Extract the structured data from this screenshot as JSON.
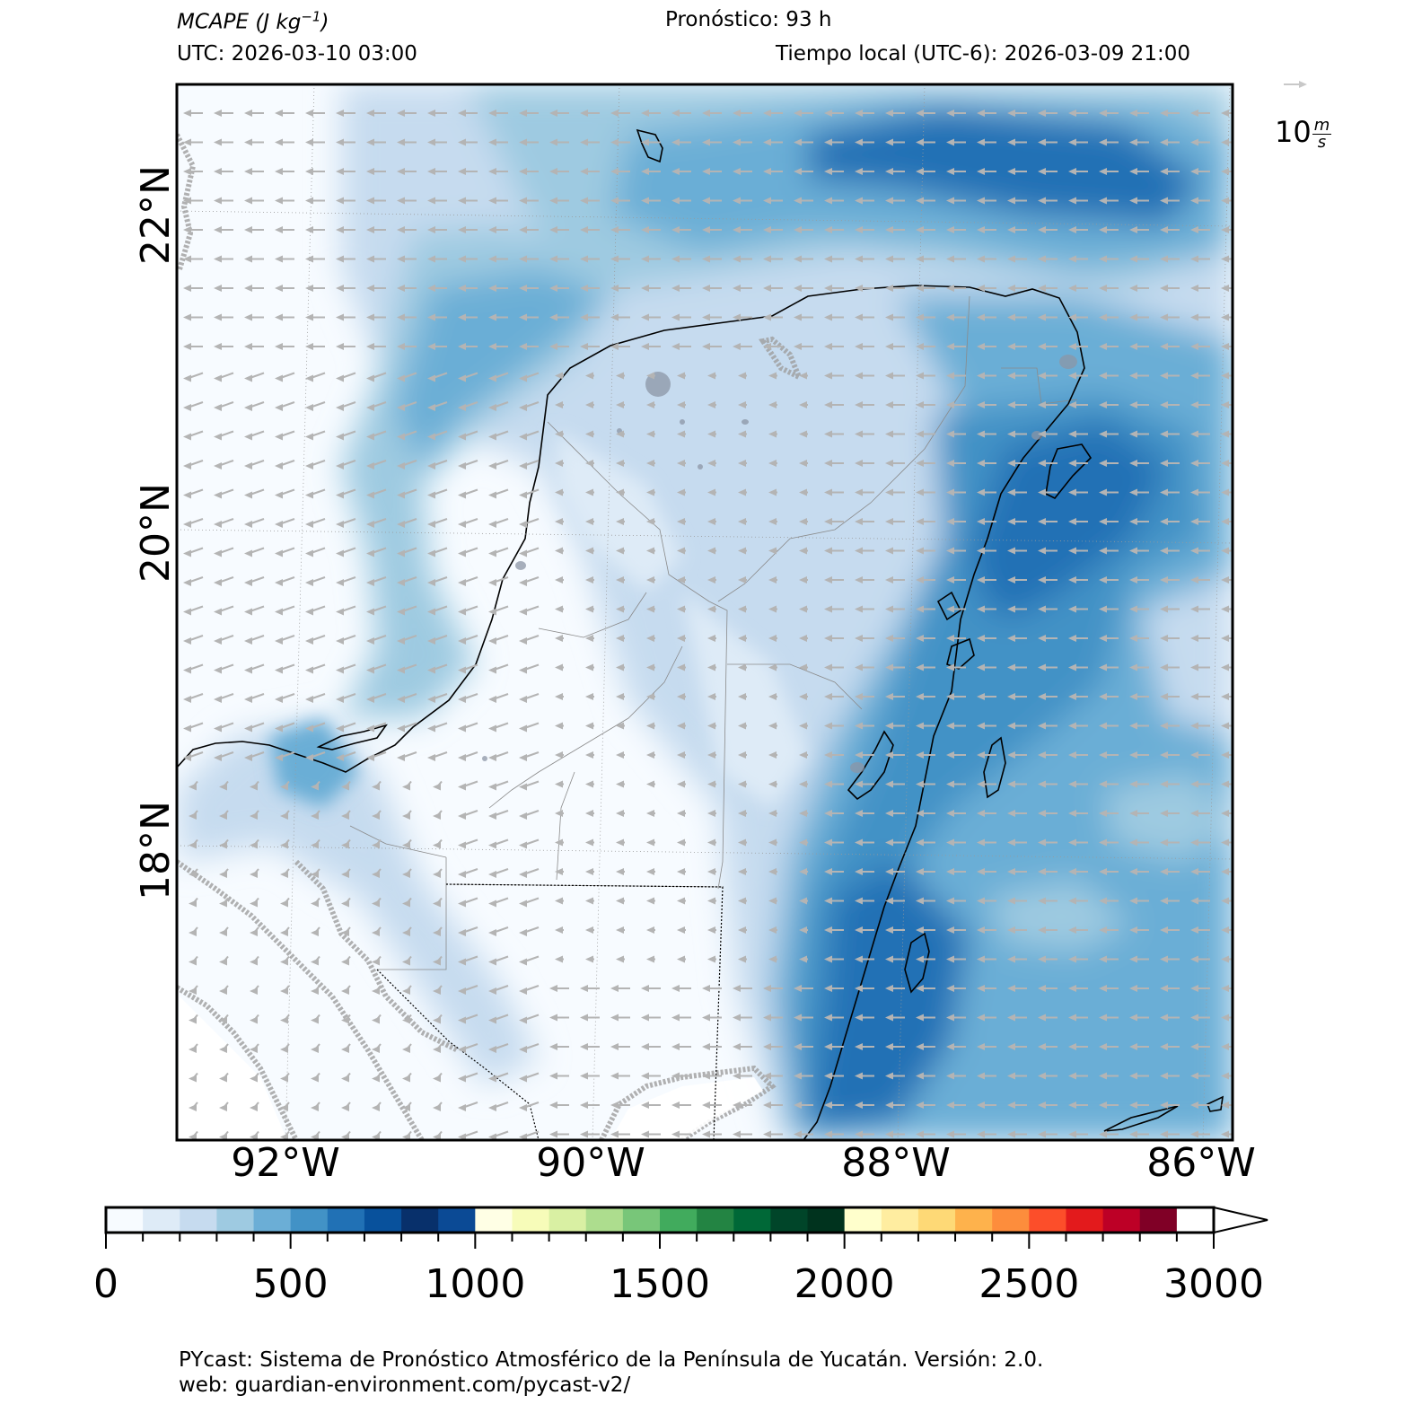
{
  "header": {
    "variable_name": "MCAPE",
    "variable_units": "(J kg",
    "variable_units_exp": "−1",
    "variable_units_close": ")",
    "forecast": "Pronóstico: 93 h",
    "utc": "UTC:  2026-03-10 03:00",
    "local": "Tiempo local (UTC-6): 2026-03-09 21:00"
  },
  "map": {
    "lat_labels": [
      "22°N",
      "20°N",
      "18°N"
    ],
    "lon_labels": [
      "92°W",
      "90°W",
      "88°W",
      "86°W"
    ],
    "wind_reference": {
      "value": "10",
      "unit_num": "m",
      "unit_den": "s"
    },
    "wind_direction": "from east, pointing west",
    "colors": {
      "land_border": "#000000",
      "wind_arrows": "#b4b4b4",
      "max_shade": "#08519c"
    }
  },
  "colorbar": {
    "min": 0,
    "max": 3000,
    "step": 100,
    "extend": "max",
    "tick_labels": [
      "0",
      "500",
      "1000",
      "1500",
      "2000",
      "2500",
      "3000"
    ],
    "colors": [
      "#f7fbff",
      "#deebf7",
      "#c6dbef",
      "#9ecae1",
      "#6baed6",
      "#4292c6",
      "#2171b5",
      "#08519c",
      "#08306b",
      "#0b4a95",
      "#ffffe5",
      "#f7fcb9",
      "#d9f0a3",
      "#addd8e",
      "#78c679",
      "#41ab5d",
      "#238443",
      "#006837",
      "#004529",
      "#00331e",
      "#ffffcc",
      "#ffeda0",
      "#fed976",
      "#feb24c",
      "#fd8d3c",
      "#fc4e2a",
      "#e31a1c",
      "#bd0026",
      "#800026",
      "#ffffff",
      "#ffffff",
      "#efedf5",
      "#dadaeb",
      "#bcbddc",
      "#9e9ac8",
      "#807dba",
      "#6a51a3",
      "#54278f",
      "#3f007d",
      "#2d0060"
    ]
  },
  "footer": {
    "line1": "PYcast: Sistema de Pronóstico Atmosférico de la Península de Yucatán. Versión: 2.0.",
    "line2": "web: guardian-environment.com/pycast-v2/"
  }
}
